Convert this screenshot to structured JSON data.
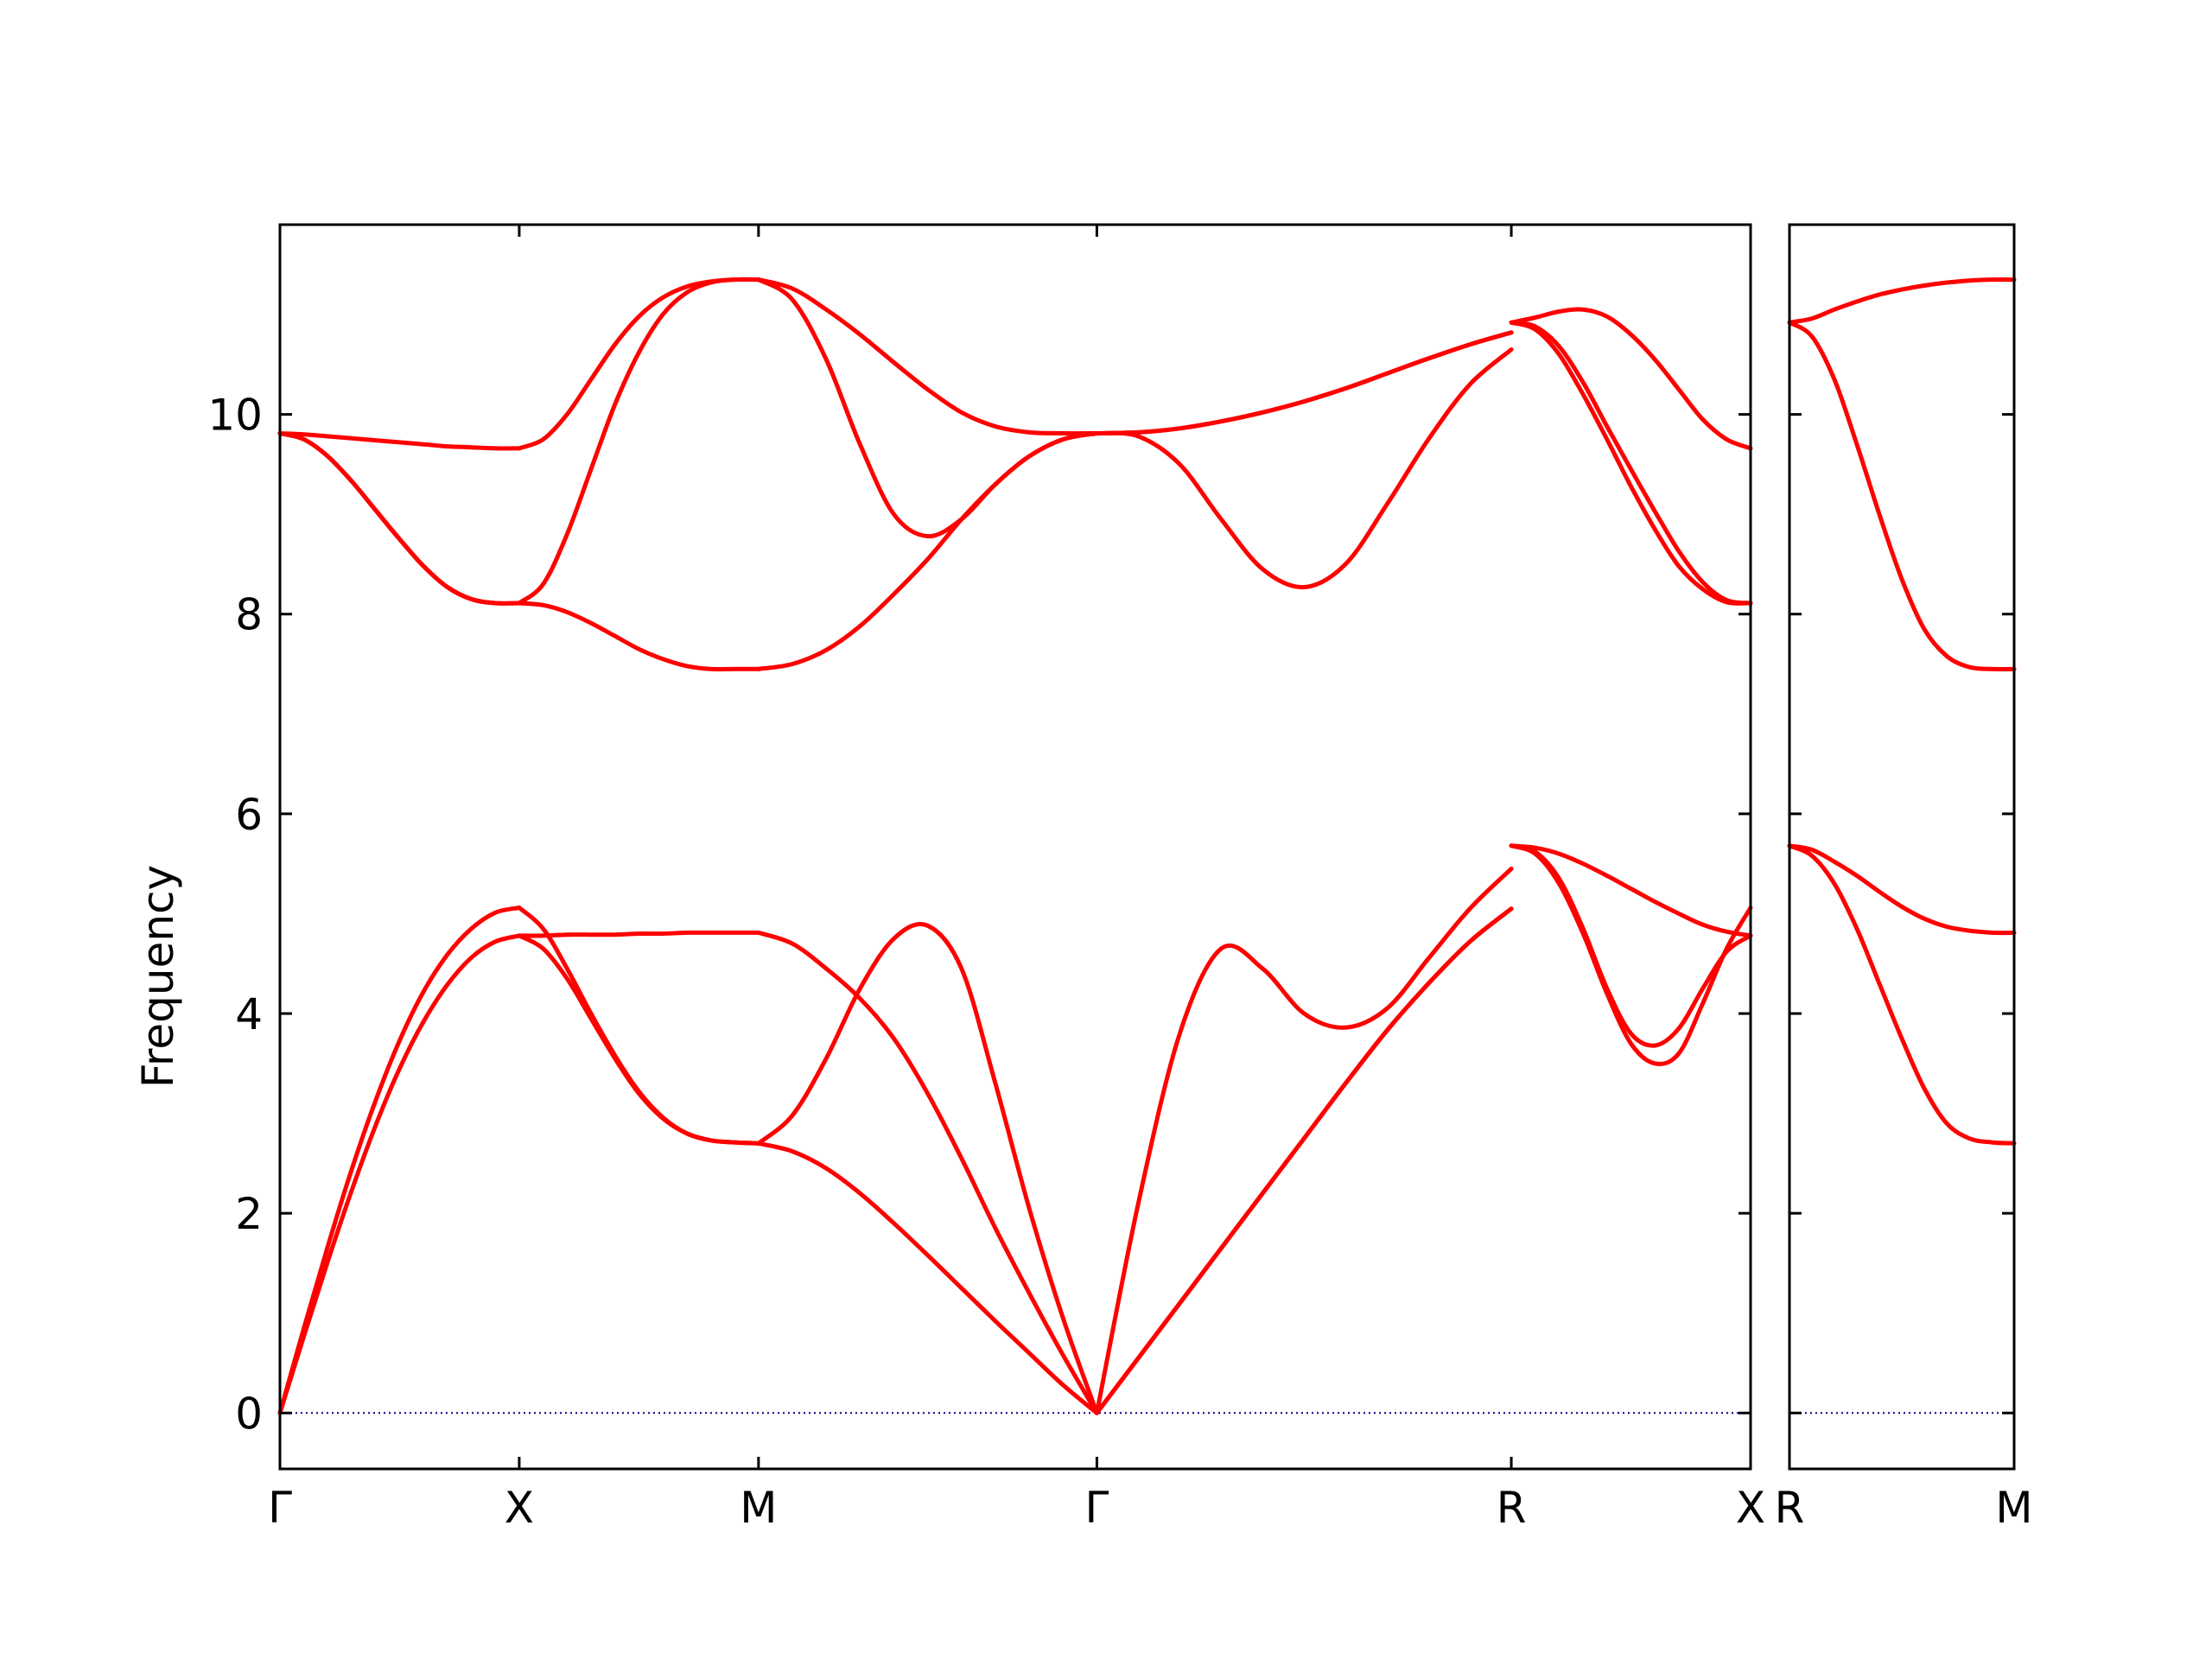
{
  "chart_data": {
    "type": "line",
    "title": "",
    "ylabel": "Frequency",
    "ylim": [
      -0.56,
      11.9
    ],
    "yticks": [
      0,
      2,
      4,
      6,
      8,
      10
    ],
    "grid": false,
    "legend": "none",
    "colors": {
      "band": "#ff0000",
      "zero_line": "#00008b",
      "axes": "#000000"
    },
    "panels": [
      {
        "id": "main",
        "segments": [
          {
            "from": "Γ",
            "to": "X",
            "x": [
              0,
              0.1,
              0.2,
              0.3,
              0.4,
              0.5,
              0.6,
              0.7,
              0.8,
              0.9,
              1
            ],
            "bands": [
              [
                0,
                0.77,
                1.52,
                2.23,
                2.88,
                3.45,
                3.92,
                4.29,
                4.56,
                4.72,
                4.78
              ],
              [
                0,
                0.85,
                1.67,
                2.44,
                3.13,
                3.73,
                4.22,
                4.59,
                4.85,
                5.01,
                5.06
              ],
              [
                9.81,
                9.8,
                9.78,
                9.76,
                9.74,
                9.72,
                9.7,
                9.68,
                9.67,
                9.66,
                9.66
              ],
              [
                9.81,
                9.75,
                9.58,
                9.33,
                9.04,
                8.75,
                8.48,
                8.27,
                8.15,
                8.11,
                8.11
              ],
              [
                9.81,
                9.75,
                9.58,
                9.33,
                9.04,
                8.75,
                8.48,
                8.27,
                8.15,
                8.11,
                8.11
              ]
            ]
          },
          {
            "from": "X",
            "to": "M",
            "x": [
              0,
              0.1,
              0.2,
              0.3,
              0.4,
              0.5,
              0.6,
              0.7,
              0.8,
              0.9,
              1
            ],
            "bands": [
              [
                4.78,
                4.78,
                4.79,
                4.79,
                4.79,
                4.8,
                4.8,
                4.81,
                4.81,
                4.81,
                4.81
              ],
              [
                4.78,
                4.65,
                4.35,
                3.95,
                3.55,
                3.2,
                2.95,
                2.8,
                2.73,
                2.71,
                2.7
              ],
              [
                5.06,
                4.85,
                4.45,
                4.0,
                3.58,
                3.22,
                2.96,
                2.8,
                2.73,
                2.71,
                2.7
              ],
              [
                8.11,
                8.09,
                8.02,
                7.91,
                7.78,
                7.65,
                7.55,
                7.48,
                7.45,
                7.45,
                7.45
              ],
              [
                8.11,
                8.3,
                8.8,
                9.45,
                10.1,
                10.62,
                11.0,
                11.22,
                11.32,
                11.35,
                11.35
              ],
              [
                9.66,
                9.75,
                10.0,
                10.35,
                10.7,
                10.98,
                11.17,
                11.28,
                11.33,
                11.35,
                11.35
              ]
            ]
          },
          {
            "from": "M",
            "to": "Γ",
            "x": [
              0,
              0.1,
              0.2,
              0.3,
              0.4,
              0.5,
              0.6,
              0.7,
              0.8,
              0.9,
              1
            ],
            "bands": [
              [
                2.7,
                2.62,
                2.45,
                2.2,
                1.9,
                1.58,
                1.25,
                0.92,
                0.6,
                0.28,
                0
              ],
              [
                4.81,
                4.7,
                4.45,
                4.15,
                3.75,
                3.2,
                2.55,
                1.85,
                1.2,
                0.58,
                0
              ],
              [
                2.7,
                2.98,
                3.55,
                4.25,
                4.75,
                4.88,
                4.45,
                3.3,
                2.05,
                0.95,
                0
              ],
              [
                7.45,
                7.5,
                7.64,
                7.88,
                8.2,
                8.55,
                8.95,
                9.3,
                9.58,
                9.75,
                9.81
              ],
              [
                11.35,
                11.15,
                10.55,
                9.7,
                9.0,
                8.78,
                8.95,
                9.3,
                9.58,
                9.75,
                9.81
              ],
              [
                11.35,
                11.26,
                11.05,
                10.8,
                10.52,
                10.25,
                10.02,
                9.88,
                9.82,
                9.81,
                9.81
              ]
            ]
          },
          {
            "from": "Γ",
            "to": "R",
            "x": [
              0,
              0.1,
              0.2,
              0.3,
              0.4,
              0.5,
              0.6,
              0.7,
              0.8,
              0.9,
              1
            ],
            "bands": [
              [
                0,
                0.55,
                1.1,
                1.65,
                2.2,
                2.75,
                3.3,
                3.83,
                4.3,
                4.72,
                5.05
              ],
              [
                0,
                2.1,
                3.8,
                4.65,
                4.45,
                4.0,
                3.86,
                4.05,
                4.55,
                5.05,
                5.45
              ],
              [
                0,
                0.55,
                1.1,
                1.65,
                2.2,
                2.75,
                3.3,
                3.83,
                4.3,
                4.72,
                5.05
              ],
              [
                9.81,
                9.78,
                9.5,
                8.95,
                8.45,
                8.27,
                8.5,
                9.1,
                9.75,
                10.3,
                10.65
              ],
              [
                9.81,
                9.82,
                9.86,
                9.93,
                10.02,
                10.13,
                10.26,
                10.41,
                10.56,
                10.7,
                10.82
              ],
              [
                9.81,
                9.82,
                9.86,
                9.93,
                10.02,
                10.13,
                10.26,
                10.41,
                10.56,
                10.7,
                10.82
              ]
            ]
          },
          {
            "from": "R",
            "to": "X",
            "x": [
              0,
              0.1,
              0.2,
              0.3,
              0.4,
              0.5,
              0.6,
              0.7,
              0.8,
              0.9,
              1
            ],
            "bands": [
              [
                5.68,
                5.6,
                5.3,
                4.8,
                4.2,
                3.7,
                3.5,
                3.6,
                4.1,
                4.65,
                5.06
              ],
              [
                5.68,
                5.62,
                5.35,
                4.85,
                4.25,
                3.8,
                3.68,
                3.85,
                4.25,
                4.62,
                4.78
              ],
              [
                5.68,
                5.66,
                5.6,
                5.5,
                5.38,
                5.25,
                5.12,
                5.0,
                4.89,
                4.82,
                4.78
              ],
              [
                10.92,
                10.85,
                10.6,
                10.2,
                9.75,
                9.28,
                8.85,
                8.48,
                8.25,
                8.12,
                8.11
              ],
              [
                10.92,
                10.88,
                10.68,
                10.32,
                9.88,
                9.45,
                9.03,
                8.63,
                8.32,
                8.14,
                8.11
              ],
              [
                10.92,
                10.97,
                11.03,
                11.05,
                10.98,
                10.8,
                10.55,
                10.25,
                9.95,
                9.75,
                9.66
              ]
            ]
          }
        ]
      },
      {
        "id": "side",
        "segments": [
          {
            "from": "R",
            "to": "M",
            "x": [
              0,
              0.1,
              0.2,
              0.3,
              0.4,
              0.5,
              0.6,
              0.7,
              0.8,
              0.9,
              1
            ],
            "bands": [
              [
                5.68,
                5.58,
                5.3,
                4.85,
                4.3,
                3.75,
                3.25,
                2.9,
                2.75,
                2.71,
                2.7
              ],
              [
                5.68,
                5.64,
                5.52,
                5.38,
                5.22,
                5.07,
                4.95,
                4.87,
                4.83,
                4.81,
                4.81
              ],
              [
                10.92,
                10.78,
                10.35,
                9.7,
                9.0,
                8.35,
                7.85,
                7.58,
                7.47,
                7.45,
                7.45
              ],
              [
                10.92,
                10.96,
                11.05,
                11.13,
                11.2,
                11.25,
                11.29,
                11.32,
                11.34,
                11.35,
                11.35
              ]
            ]
          }
        ]
      }
    ]
  }
}
